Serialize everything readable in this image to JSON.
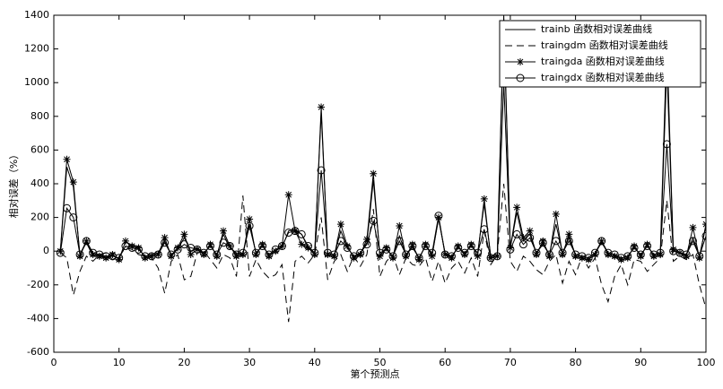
{
  "chart_data": {
    "type": "line",
    "x_label": "第个预测点",
    "y_label": "相对误差（%）",
    "x": [
      1,
      2,
      3,
      4,
      5,
      6,
      7,
      8,
      9,
      10,
      11,
      12,
      13,
      14,
      15,
      16,
      17,
      18,
      19,
      20,
      21,
      22,
      23,
      24,
      25,
      26,
      27,
      28,
      29,
      30,
      31,
      32,
      33,
      34,
      35,
      36,
      37,
      38,
      39,
      40,
      41,
      42,
      43,
      44,
      45,
      46,
      47,
      48,
      49,
      50,
      51,
      52,
      53,
      54,
      55,
      56,
      57,
      58,
      59,
      60,
      61,
      62,
      63,
      64,
      65,
      66,
      67,
      68,
      69,
      70,
      71,
      72,
      73,
      74,
      75,
      76,
      77,
      78,
      79,
      80,
      81,
      82,
      83,
      84,
      85,
      86,
      87,
      88,
      89,
      90,
      91,
      92,
      93,
      94,
      95,
      96,
      97,
      98,
      99,
      100
    ],
    "xlim": [
      0,
      100
    ],
    "xticks": [
      0,
      10,
      20,
      30,
      40,
      50,
      60,
      70,
      80,
      90,
      100
    ],
    "ylim": [
      -600,
      1400
    ],
    "yticks": [
      -600,
      -400,
      -200,
      0,
      200,
      400,
      600,
      800,
      1000,
      1200,
      1400
    ],
    "legend": "top-right",
    "series": [
      {
        "name": "trainb   函数相对误差曲线",
        "color": "#000000",
        "style": "solid",
        "values": [
          0,
          500,
          380,
          -20,
          50,
          -30,
          -20,
          -40,
          -30,
          -40,
          30,
          20,
          10,
          -30,
          -20,
          -10,
          60,
          -20,
          10,
          80,
          0,
          20,
          -10,
          30,
          -20,
          100,
          20,
          -10,
          -20,
          160,
          -10,
          30,
          -20,
          10,
          20,
          120,
          130,
          100,
          20,
          -10,
          820,
          -20,
          -30,
          120,
          20,
          -30,
          -10,
          50,
          420,
          -20,
          10,
          -30,
          90,
          -20,
          20,
          -40,
          30,
          -20,
          190,
          -10,
          -30,
          20,
          -10,
          30,
          -10,
          280,
          -30,
          -20,
          1400,
          20,
          230,
          60,
          100,
          -10,
          40,
          -20,
          160,
          -10,
          80,
          -20,
          -30,
          -40,
          -10,
          50,
          -10,
          -20,
          -40,
          -30,
          20,
          -20,
          30,
          -20,
          -10,
          1250,
          0,
          -10,
          -20,
          80,
          -30,
          150
        ]
      },
      {
        "name": "traingdm 函数相对误差曲线",
        "color": "#000000",
        "style": "dashed",
        "values": [
          -10,
          -40,
          -260,
          -120,
          -30,
          -60,
          -20,
          -10,
          -50,
          -30,
          20,
          10,
          -20,
          -30,
          -40,
          -100,
          -250,
          -60,
          -20,
          -170,
          -150,
          -10,
          0,
          -50,
          -100,
          -20,
          -40,
          -150,
          330,
          -150,
          -50,
          -120,
          -160,
          -140,
          -80,
          -420,
          -60,
          -30,
          -70,
          -20,
          200,
          -170,
          -60,
          -20,
          -120,
          -30,
          -90,
          -20,
          250,
          -150,
          -60,
          -20,
          -140,
          -40,
          -80,
          -90,
          -40,
          -180,
          -60,
          -190,
          -100,
          -60,
          -130,
          -40,
          -150,
          120,
          -80,
          -20,
          400,
          -60,
          -120,
          -30,
          -60,
          -110,
          -140,
          -60,
          -20,
          -190,
          -60,
          -140,
          -30,
          -100,
          -40,
          -200,
          -300,
          -150,
          -80,
          -200,
          -50,
          -60,
          -120,
          -80,
          -40,
          300,
          -60,
          -30,
          -50,
          -20,
          -200,
          -340
        ]
      },
      {
        "name": "traingda  函数相对误差曲线",
        "color": "#000000",
        "style": "star",
        "values": [
          0,
          545,
          410,
          -30,
          60,
          -20,
          -30,
          -40,
          -20,
          -50,
          60,
          30,
          20,
          -40,
          -30,
          -20,
          80,
          -30,
          20,
          100,
          -20,
          10,
          -20,
          40,
          -30,
          120,
          30,
          -30,
          -20,
          190,
          -20,
          40,
          -30,
          0,
          30,
          335,
          120,
          40,
          20,
          -20,
          855,
          -20,
          -30,
          160,
          30,
          -40,
          -20,
          70,
          460,
          -30,
          20,
          -40,
          150,
          -30,
          40,
          -50,
          40,
          -30,
          200,
          -20,
          -40,
          30,
          -20,
          40,
          -30,
          310,
          -40,
          -30,
          1350,
          20,
          260,
          80,
          120,
          -20,
          60,
          -30,
          220,
          -20,
          100,
          -30,
          -40,
          -50,
          -20,
          60,
          -20,
          -30,
          -50,
          -40,
          30,
          -30,
          40,
          -30,
          -20,
          1100,
          10,
          -10,
          -30,
          140,
          -40,
          160
        ]
      },
      {
        "name": "traingdx  函数相对误差曲线",
        "color": "#000000",
        "style": "circle",
        "values": [
          -10,
          255,
          200,
          -20,
          60,
          -10,
          -20,
          -30,
          -30,
          -40,
          30,
          20,
          10,
          -30,
          -30,
          -20,
          50,
          -20,
          10,
          40,
          20,
          10,
          -10,
          30,
          -20,
          50,
          30,
          -20,
          -10,
          150,
          -10,
          30,
          -20,
          10,
          30,
          110,
          120,
          100,
          30,
          -10,
          480,
          -10,
          -20,
          60,
          20,
          -30,
          -10,
          40,
          180,
          -10,
          10,
          -30,
          60,
          -20,
          30,
          -40,
          30,
          -10,
          210,
          -20,
          -30,
          20,
          -10,
          30,
          -10,
          130,
          -40,
          -30,
          1000,
          10,
          100,
          40,
          80,
          -10,
          50,
          -20,
          60,
          -10,
          60,
          -20,
          -30,
          -40,
          -10,
          60,
          -10,
          -20,
          -40,
          -30,
          20,
          -20,
          30,
          -20,
          -10,
          635,
          0,
          -10,
          -20,
          60,
          -30,
          90
        ]
      }
    ]
  }
}
